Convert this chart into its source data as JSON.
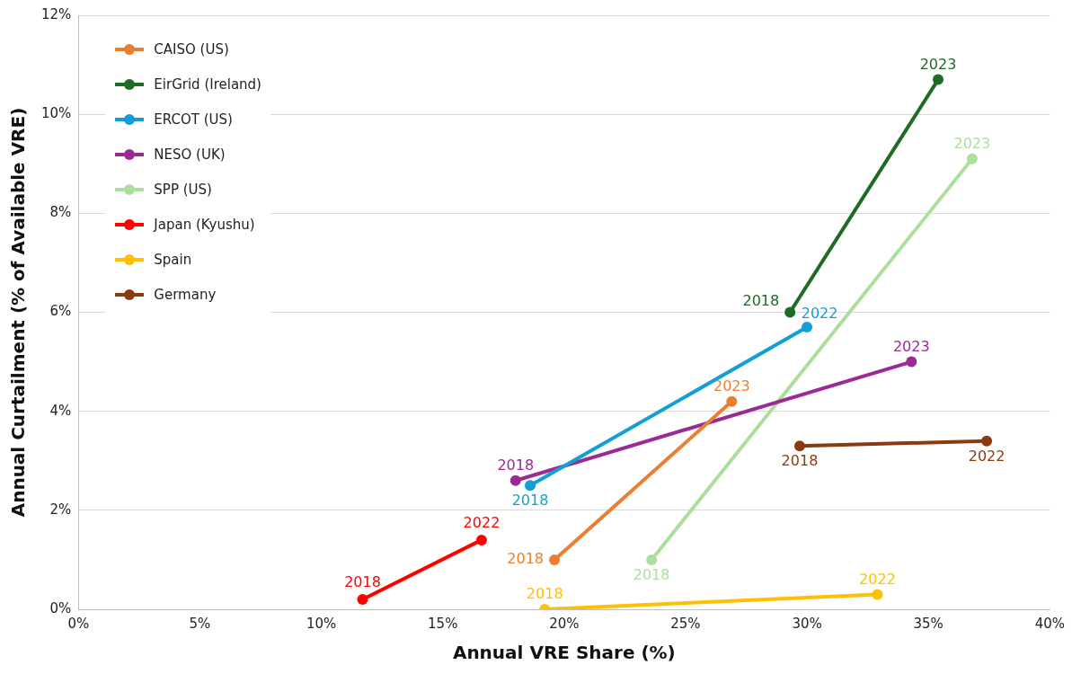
{
  "chart_data": {
    "type": "line",
    "xlabel": "Annual VRE Share (%)",
    "ylabel": "Annual Curtailment (% of Available VRE)",
    "xlim": [
      0,
      40
    ],
    "xticks": [
      {
        "value": 0,
        "label": "0%"
      },
      {
        "value": 5,
        "label": "5%"
      },
      {
        "value": 10,
        "label": "10%"
      },
      {
        "value": 15,
        "label": "15%"
      },
      {
        "value": 20,
        "label": "20%"
      },
      {
        "value": 25,
        "label": "25%"
      },
      {
        "value": 30,
        "label": "30%"
      },
      {
        "value": 35,
        "label": "35%"
      },
      {
        "value": 40,
        "label": "40%"
      }
    ],
    "ylim": [
      0,
      12
    ],
    "yticks": [
      {
        "value": 0,
        "label": "0%"
      },
      {
        "value": 2,
        "label": "2%"
      },
      {
        "value": 4,
        "label": "4%"
      },
      {
        "value": 6,
        "label": "6%"
      },
      {
        "value": 8,
        "label": "8%"
      },
      {
        "value": 10,
        "label": "10%"
      },
      {
        "value": 12,
        "label": "12%"
      }
    ],
    "grid": "y",
    "legend": "top left",
    "marker": "circle",
    "line_style": "solid",
    "series": [
      {
        "name": "CAISO (US)",
        "color": "#ed7d31",
        "x": [
          19.6,
          26.9
        ],
        "values": [
          1.0,
          4.2
        ]
      },
      {
        "name": "EirGrid (Ireland)",
        "color": "#1e6b23",
        "x": [
          29.3,
          35.4
        ],
        "values": [
          6.0,
          10.7
        ]
      },
      {
        "name": "ERCOT (US)",
        "color": "#129fd8",
        "x": [
          18.6,
          30.0
        ],
        "values": [
          2.5,
          5.7
        ]
      },
      {
        "name": "NESO (UK)",
        "color": "#9b2a94",
        "x": [
          18.0,
          34.3
        ],
        "values": [
          2.6,
          5.0
        ]
      },
      {
        "name": "SPP (US)",
        "color": "#addf9c",
        "x": [
          23.6,
          36.8
        ],
        "values": [
          1.0,
          9.1
        ]
      },
      {
        "name": "Japan (Kyushu)",
        "color": "#ff0000",
        "x": [
          11.7,
          16.6
        ],
        "values": [
          0.2,
          1.4
        ]
      },
      {
        "name": "Spain",
        "color": "#ffc000",
        "x": [
          19.2,
          32.9
        ],
        "values": [
          0.0,
          0.3
        ]
      },
      {
        "name": "Germany",
        "color": "#8b3a0f",
        "x": [
          29.7,
          37.4
        ],
        "values": [
          3.3,
          3.4
        ]
      }
    ],
    "annotations": [
      {
        "text": "2018",
        "x": 19.6,
        "y": 1.0
      },
      {
        "text": "2023",
        "x": 26.9,
        "y": 4.2
      },
      {
        "text": "2018",
        "x": 29.3,
        "y": 6.0
      },
      {
        "text": "2023",
        "x": 35.4,
        "y": 10.7
      },
      {
        "text": "2018",
        "x": 18.6,
        "y": 2.5
      },
      {
        "text": "2022",
        "x": 30.0,
        "y": 5.7
      },
      {
        "text": "2018",
        "x": 18.0,
        "y": 2.6
      },
      {
        "text": "2023",
        "x": 34.3,
        "y": 5.0
      },
      {
        "text": "2018",
        "x": 23.6,
        "y": 1.0
      },
      {
        "text": "2023",
        "x": 36.8,
        "y": 9.1
      },
      {
        "text": "2018",
        "x": 11.7,
        "y": 0.2
      },
      {
        "text": "2022",
        "x": 16.6,
        "y": 1.4
      },
      {
        "text": "2018",
        "x": 19.2,
        "y": 0.0
      },
      {
        "text": "2022",
        "x": 32.9,
        "y": 0.3
      },
      {
        "text": "2018",
        "x": 29.7,
        "y": 3.3
      },
      {
        "text": "2022",
        "x": 37.4,
        "y": 3.4
      }
    ]
  }
}
